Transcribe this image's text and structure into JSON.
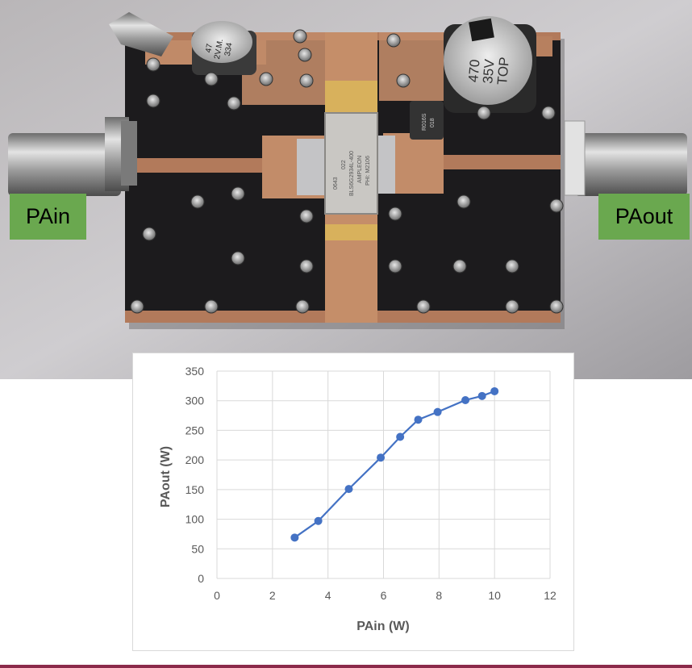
{
  "labels": {
    "input": "PAin",
    "output": "PAout"
  },
  "colors": {
    "series": "#4472c4",
    "label_bg": "#6aa84f",
    "rule": "#8b2a4a"
  },
  "photo": {
    "capacitor_left_text": [
      "47",
      "2V.M.",
      "334"
    ],
    "capacitor_right_text": [
      "470",
      "35V",
      "TOP"
    ],
    "transistor_text": [
      "0643",
      "022",
      "BLS6G2934L-400",
      "AMPLEON",
      "PHI: M2106"
    ],
    "inductor_text": [
      "R016S",
      "018"
    ]
  },
  "chart_data": {
    "type": "scatter",
    "mode": "lines+markers",
    "title": "",
    "xlabel": "PAin (W)",
    "ylabel": "PAout (W)",
    "xlim": [
      0,
      12
    ],
    "ylim": [
      0,
      350
    ],
    "xticks": [
      0,
      2,
      4,
      6,
      8,
      10,
      12
    ],
    "yticks": [
      0,
      50,
      100,
      150,
      200,
      250,
      300,
      350
    ],
    "grid": true,
    "legend": "none",
    "series": [
      {
        "x": [
          2.8,
          3.65,
          4.75,
          5.9,
          6.6,
          7.25,
          7.95,
          8.95,
          9.55,
          10.0
        ],
        "y": [
          69,
          97,
          151,
          204,
          239,
          268,
          281,
          301,
          308,
          316
        ]
      }
    ]
  }
}
